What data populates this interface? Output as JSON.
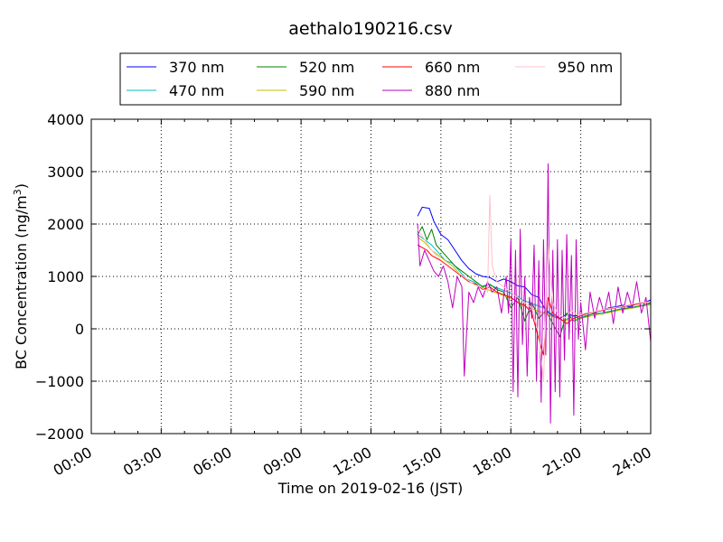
{
  "chart_data": {
    "type": "line",
    "title": "aethalo190216.csv",
    "xlabel": "Time on 2019-02-16 (JST)",
    "ylabel": "BC Concentration (ng/m",
    "ylabel_sup": "3",
    "ylabel_end": ")",
    "xlim": [
      0,
      24
    ],
    "ylim": [
      -2000,
      4000
    ],
    "xticks": [
      0,
      3,
      6,
      9,
      12,
      15,
      18,
      21,
      24
    ],
    "xtick_labels": [
      "00:00",
      "03:00",
      "06:00",
      "09:00",
      "12:00",
      "15:00",
      "18:00",
      "21:00",
      "24:00"
    ],
    "yticks": [
      -2000,
      -1000,
      0,
      1000,
      2000,
      3000,
      4000
    ],
    "ytick_labels": [
      "−2000",
      "−1000",
      "0",
      "1000",
      "2000",
      "3000",
      "4000"
    ],
    "grid": true,
    "legend_position": "top-center",
    "series": [
      {
        "name": "370 nm",
        "color": "#0000ff",
        "x": [
          14.0,
          14.2,
          14.5,
          14.7,
          15.0,
          15.3,
          15.6,
          15.9,
          16.2,
          16.5,
          16.8,
          17.1,
          17.4,
          17.7,
          18.0,
          18.3,
          18.6,
          18.9,
          19.2,
          19.5,
          19.8,
          20.1,
          20.4,
          20.7,
          21.0,
          21.3,
          21.6,
          21.9,
          22.2,
          22.5,
          22.8,
          23.1,
          23.4,
          23.7,
          24.0
        ],
        "values": [
          2150,
          2320,
          2300,
          2050,
          1800,
          1700,
          1500,
          1300,
          1150,
          1050,
          1000,
          980,
          900,
          950,
          900,
          820,
          800,
          650,
          600,
          350,
          250,
          200,
          280,
          250,
          250,
          300,
          320,
          350,
          400,
          420,
          450,
          420,
          480,
          500,
          550
        ]
      },
      {
        "name": "470 nm",
        "color": "#00bfbf",
        "x": [
          14.0,
          14.3,
          14.6,
          14.9,
          15.2,
          15.5,
          15.8,
          16.1,
          16.4,
          16.7,
          17.0,
          17.3,
          17.6,
          17.9,
          18.2,
          18.5,
          18.8,
          19.1,
          19.4,
          19.7,
          20.0,
          20.3,
          20.6,
          20.9,
          21.2,
          21.5,
          21.8,
          22.1,
          22.4,
          22.7,
          23.0,
          23.3,
          23.6,
          24.0
        ],
        "values": [
          1800,
          1700,
          1600,
          1450,
          1300,
          1250,
          1100,
          950,
          900,
          800,
          850,
          800,
          750,
          700,
          650,
          550,
          500,
          450,
          400,
          300,
          200,
          150,
          250,
          200,
          250,
          280,
          300,
          320,
          350,
          380,
          400,
          420,
          450,
          480
        ]
      },
      {
        "name": "520 nm",
        "color": "#008000",
        "x": [
          14.0,
          14.2,
          14.4,
          14.6,
          14.8,
          15.0,
          15.3,
          15.6,
          15.9,
          16.2,
          16.5,
          16.8,
          17.1,
          17.4,
          17.7,
          18.0,
          18.3,
          18.6,
          18.9,
          19.2,
          19.5,
          19.8,
          20.1,
          20.4,
          20.7,
          21.0,
          21.3,
          21.6,
          21.9,
          22.2,
          22.5,
          22.8,
          23.1,
          23.4,
          23.7,
          24.0
        ],
        "values": [
          1800,
          1950,
          1700,
          1900,
          1600,
          1500,
          1350,
          1200,
          1100,
          1000,
          900,
          800,
          850,
          750,
          700,
          400,
          600,
          150,
          500,
          200,
          350,
          100,
          -150,
          300,
          150,
          200,
          250,
          300,
          280,
          320,
          350,
          380,
          400,
          420,
          450,
          500
        ]
      },
      {
        "name": "590 nm",
        "color": "#bfbf00",
        "x": [
          14.0,
          14.3,
          14.6,
          14.9,
          15.2,
          15.5,
          15.8,
          16.1,
          16.4,
          16.7,
          17.0,
          17.3,
          17.6,
          17.9,
          18.2,
          18.5,
          18.8,
          19.1,
          19.4,
          19.7,
          20.0,
          20.3,
          20.6,
          20.9,
          21.2,
          21.5,
          21.8,
          22.1,
          22.4,
          22.7,
          23.0,
          23.3,
          23.6,
          24.0
        ],
        "values": [
          1750,
          1650,
          1500,
          1400,
          1300,
          1200,
          1050,
          950,
          850,
          800,
          750,
          700,
          650,
          600,
          550,
          450,
          400,
          350,
          300,
          250,
          200,
          150,
          200,
          180,
          220,
          250,
          280,
          300,
          330,
          360,
          380,
          400,
          430,
          460
        ]
      },
      {
        "name": "660 nm",
        "color": "#ff0000",
        "x": [
          14.0,
          14.2,
          14.4,
          14.6,
          14.8,
          15.0,
          15.3,
          15.6,
          15.9,
          16.2,
          16.5,
          16.8,
          17.1,
          17.4,
          17.7,
          18.0,
          18.3,
          18.6,
          18.9,
          19.2,
          19.4,
          19.6,
          19.8,
          20.1,
          20.4,
          20.7,
          21.0,
          21.3,
          21.6,
          21.9,
          22.2,
          22.5,
          22.8,
          23.1,
          23.4,
          23.7,
          24.0
        ],
        "values": [
          1600,
          1550,
          1500,
          1400,
          1350,
          1300,
          1200,
          1100,
          1000,
          900,
          850,
          750,
          800,
          700,
          650,
          600,
          500,
          450,
          300,
          -200,
          -500,
          600,
          300,
          200,
          100,
          200,
          250,
          300,
          320,
          350,
          380,
          400,
          420,
          450,
          470,
          500,
          520
        ]
      },
      {
        "name": "880 nm",
        "color": "#bf00bf",
        "x": [
          14.0,
          14.1,
          14.3,
          14.5,
          14.7,
          14.9,
          15.1,
          15.3,
          15.5,
          15.7,
          15.9,
          16.0,
          16.2,
          16.4,
          16.6,
          16.8,
          17.0,
          17.2,
          17.4,
          17.6,
          17.8,
          17.9,
          18.0,
          18.1,
          18.2,
          18.3,
          18.4,
          18.5,
          18.6,
          18.7,
          18.8,
          18.9,
          19.0,
          19.1,
          19.2,
          19.3,
          19.4,
          19.5,
          19.6,
          19.7,
          19.8,
          19.9,
          20.0,
          20.1,
          20.2,
          20.3,
          20.4,
          20.5,
          20.6,
          20.7,
          20.8,
          20.9,
          21.0,
          21.2,
          21.4,
          21.6,
          21.8,
          22.0,
          22.2,
          22.4,
          22.6,
          22.8,
          23.0,
          23.2,
          23.4,
          23.6,
          23.8,
          24.0
        ],
        "values": [
          2000,
          1200,
          1500,
          1300,
          1100,
          1000,
          1200,
          900,
          400,
          1000,
          800,
          -900,
          700,
          500,
          800,
          600,
          900,
          700,
          800,
          300,
          1000,
          300,
          1700,
          -1200,
          1500,
          -1300,
          1900,
          -300,
          1000,
          -900,
          600,
          200,
          1600,
          -1000,
          1300,
          -1400,
          1700,
          -500,
          3150,
          -1800,
          1500,
          -1200,
          1700,
          -1300,
          1500,
          -600,
          1800,
          -200,
          1400,
          -1650,
          1700,
          -200,
          500,
          -400,
          700,
          200,
          600,
          300,
          700,
          100,
          800,
          300,
          700,
          400,
          900,
          300,
          600,
          -250
        ]
      },
      {
        "name": "950 nm",
        "color": "#ffc0cb",
        "x": [
          14.0,
          14.3,
          14.6,
          14.9,
          15.2,
          15.5,
          15.8,
          16.1,
          16.4,
          16.7,
          17.0,
          17.1,
          17.2,
          17.4,
          17.7,
          18.0,
          18.3,
          18.6,
          18.9,
          19.2,
          19.4,
          19.6,
          19.8,
          20.0,
          20.3,
          20.6,
          20.9,
          21.2,
          21.5,
          21.8,
          22.1,
          22.4,
          22.7,
          23.0,
          23.3,
          23.6,
          24.0
        ],
        "values": [
          1900,
          1700,
          1500,
          1350,
          1250,
          1150,
          1050,
          950,
          850,
          800,
          700,
          2550,
          1200,
          900,
          800,
          700,
          600,
          500,
          400,
          -100,
          -1000,
          1600,
          500,
          300,
          200,
          350,
          250,
          300,
          320,
          350,
          380,
          400,
          420,
          450,
          480,
          500,
          520
        ]
      }
    ]
  }
}
